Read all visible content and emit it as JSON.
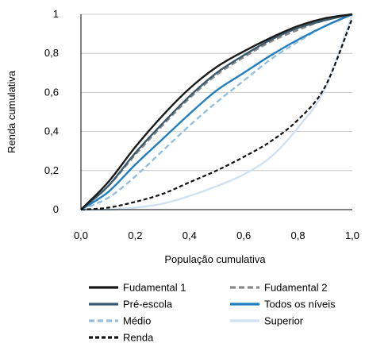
{
  "chart_data": {
    "type": "line",
    "title": "",
    "xlabel": "População cumulativa",
    "ylabel": "Renda cumulativa",
    "xlim": [
      0,
      1
    ],
    "ylim": [
      0,
      1
    ],
    "x_ticks": [
      "0,0",
      "0,2",
      "0,4",
      "0,6",
      "0,8",
      "1,0"
    ],
    "y_ticks": [
      "0",
      "0,2",
      "0,4",
      "0,6",
      "0,8",
      "1"
    ],
    "grid": "horizontal",
    "legend_position": "bottom",
    "x": [
      0,
      0.1,
      0.2,
      0.3,
      0.4,
      0.5,
      0.6,
      0.7,
      0.8,
      0.9,
      1.0
    ],
    "series": [
      {
        "name": "Fudamental 1",
        "color": "#1a1a1a",
        "dash": "solid",
        "values": [
          0,
          0.14,
          0.32,
          0.48,
          0.62,
          0.73,
          0.81,
          0.88,
          0.94,
          0.98,
          1.0
        ]
      },
      {
        "name": "Fudamental 2",
        "color": "#8a8a8a",
        "dash": "dashed",
        "values": [
          0,
          0.12,
          0.28,
          0.43,
          0.57,
          0.69,
          0.78,
          0.86,
          0.92,
          0.97,
          1.0
        ]
      },
      {
        "name": "Pré-escola",
        "color": "#3a5a6e",
        "dash": "solid",
        "values": [
          0,
          0.12,
          0.29,
          0.44,
          0.58,
          0.7,
          0.79,
          0.87,
          0.93,
          0.97,
          1.0
        ]
      },
      {
        "name": "Todos os níveis",
        "color": "#1f7fc1",
        "dash": "solid",
        "values": [
          0,
          0.09,
          0.23,
          0.36,
          0.49,
          0.61,
          0.7,
          0.79,
          0.87,
          0.94,
          1.0
        ]
      },
      {
        "name": "Médio",
        "color": "#94bfe0",
        "dash": "dashed",
        "values": [
          0,
          0.06,
          0.17,
          0.3,
          0.43,
          0.55,
          0.66,
          0.77,
          0.86,
          0.94,
          1.0
        ]
      },
      {
        "name": "Superior",
        "color": "#cfe2f3",
        "dash": "solid",
        "values": [
          0,
          0.0,
          0.01,
          0.03,
          0.07,
          0.12,
          0.18,
          0.27,
          0.42,
          0.62,
          1.0
        ]
      },
      {
        "name": "Renda",
        "color": "#111111",
        "dash": "dotted",
        "values": [
          0,
          0.01,
          0.04,
          0.08,
          0.14,
          0.2,
          0.27,
          0.35,
          0.46,
          0.63,
          0.98
        ]
      }
    ]
  }
}
